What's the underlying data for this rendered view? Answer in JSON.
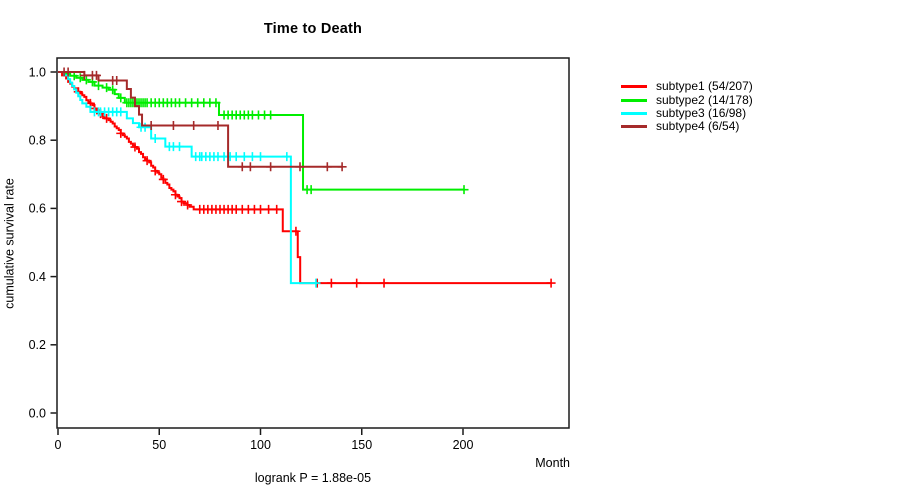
{
  "chart": {
    "title": "Time to Death",
    "ylabel": "cumulative survival rate",
    "xlabel": "Month",
    "footnote": "logrank P = 1.88e-05"
  },
  "chart_data": {
    "type": "line",
    "variant": "kaplan-meier-step",
    "title": "Time to Death",
    "xlabel": "Month",
    "ylabel": "cumulative survival rate",
    "footnote": "logrank P = 1.88e-05",
    "xlim": [
      0,
      252
    ],
    "ylim": [
      0.0,
      1.0
    ],
    "grid": false,
    "legend_position": "right",
    "x_ticks": [
      {
        "label": "0",
        "value": 0
      },
      {
        "label": "50",
        "value": 50
      },
      {
        "label": "100",
        "value": 100
      },
      {
        "label": "150",
        "value": 150
      },
      {
        "label": "200",
        "value": 200
      }
    ],
    "y_ticks": [
      {
        "label": "0.0",
        "value": 0.0
      },
      {
        "label": "0.2",
        "value": 0.2
      },
      {
        "label": "0.4",
        "value": 0.4
      },
      {
        "label": "0.6",
        "value": 0.6
      },
      {
        "label": "0.8",
        "value": 0.8
      },
      {
        "label": "1.0",
        "value": 1.0
      }
    ],
    "series": [
      {
        "name": "subtype1",
        "legend_label": "subtype1 (54/207)",
        "events": 54,
        "n": 207,
        "color": "#ff0000",
        "end_month": 243.5,
        "steps": [
          [
            0,
            1.0
          ],
          [
            2,
            0.99
          ],
          [
            4,
            0.981
          ],
          [
            5,
            0.971
          ],
          [
            6,
            0.966
          ],
          [
            7,
            0.957
          ],
          [
            8,
            0.952
          ],
          [
            10,
            0.942
          ],
          [
            11,
            0.937
          ],
          [
            12,
            0.932
          ],
          [
            13,
            0.927
          ],
          [
            14,
            0.917
          ],
          [
            15,
            0.912
          ],
          [
            16,
            0.908
          ],
          [
            17,
            0.903
          ],
          [
            18,
            0.893
          ],
          [
            19,
            0.888
          ],
          [
            20,
            0.883
          ],
          [
            21,
            0.878
          ],
          [
            22,
            0.869
          ],
          [
            23,
            0.864
          ],
          [
            25,
            0.859
          ],
          [
            26,
            0.854
          ],
          [
            27,
            0.849
          ],
          [
            28,
            0.84
          ],
          [
            29,
            0.835
          ],
          [
            30,
            0.83
          ],
          [
            31,
            0.82
          ],
          [
            32,
            0.815
          ],
          [
            33,
            0.81
          ],
          [
            34,
            0.805
          ],
          [
            35,
            0.795
          ],
          [
            36,
            0.79
          ],
          [
            37,
            0.785
          ],
          [
            38,
            0.78
          ],
          [
            39,
            0.775
          ],
          [
            40,
            0.765
          ],
          [
            41,
            0.76
          ],
          [
            42,
            0.75
          ],
          [
            43,
            0.745
          ],
          [
            44,
            0.74
          ],
          [
            45,
            0.735
          ],
          [
            46,
            0.725
          ],
          [
            47,
            0.72
          ],
          [
            48,
            0.71
          ],
          [
            49,
            0.705
          ],
          [
            50,
            0.7
          ],
          [
            51,
            0.69
          ],
          [
            52,
            0.685
          ],
          [
            53,
            0.675
          ],
          [
            54,
            0.67
          ],
          [
            55,
            0.66
          ],
          [
            56,
            0.655
          ],
          [
            57,
            0.65
          ],
          [
            58,
            0.64
          ],
          [
            59,
            0.635
          ],
          [
            60,
            0.63
          ],
          [
            61,
            0.62
          ],
          [
            62,
            0.615
          ],
          [
            64,
            0.61
          ],
          [
            65,
            0.605
          ],
          [
            67,
            0.597
          ],
          [
            111,
            0.533
          ],
          [
            118.4,
            0.457
          ],
          [
            119.6,
            0.381
          ]
        ],
        "censor_months": [
          10,
          16,
          18,
          21,
          24,
          31,
          38,
          44,
          48,
          52,
          58,
          61,
          64,
          70,
          72,
          74,
          76,
          78,
          80,
          82,
          84,
          86,
          88,
          91,
          94,
          97,
          100,
          104,
          108,
          117.5,
          128,
          135,
          147.5,
          161,
          243.5
        ]
      },
      {
        "name": "subtype2",
        "legend_label": "subtype2 (14/178)",
        "events": 14,
        "n": 178,
        "color": "#00ee00",
        "end_month": 200.5,
        "steps": [
          [
            0,
            1.0
          ],
          [
            4,
            0.994
          ],
          [
            6,
            0.989
          ],
          [
            9,
            0.983
          ],
          [
            12,
            0.977
          ],
          [
            15,
            0.971
          ],
          [
            18,
            0.96
          ],
          [
            22,
            0.954
          ],
          [
            25,
            0.948
          ],
          [
            28,
            0.935
          ],
          [
            30,
            0.924
          ],
          [
            33,
            0.91
          ],
          [
            79.5,
            0.874
          ],
          [
            121,
            0.655
          ]
        ],
        "censor_months": [
          8,
          11,
          14,
          17,
          20,
          24,
          27,
          31,
          34,
          35,
          36,
          37,
          38,
          39,
          40,
          41,
          42,
          43,
          44,
          46,
          48,
          50,
          52,
          54,
          56,
          58,
          60,
          63,
          66,
          69,
          72,
          75,
          78,
          82,
          84,
          86,
          88,
          90,
          92,
          94,
          96,
          99,
          102,
          105,
          123,
          125,
          200.5
        ]
      },
      {
        "name": "subtype3",
        "legend_label": "subtype3 (16/98)",
        "events": 16,
        "n": 98,
        "color": "#00ffff",
        "end_month": 127.5,
        "steps": [
          [
            0,
            1.0
          ],
          [
            3,
            0.99
          ],
          [
            5,
            0.979
          ],
          [
            6,
            0.969
          ],
          [
            7,
            0.959
          ],
          [
            8,
            0.949
          ],
          [
            9,
            0.939
          ],
          [
            10,
            0.929
          ],
          [
            11,
            0.918
          ],
          [
            12,
            0.908
          ],
          [
            14,
            0.898
          ],
          [
            16,
            0.883
          ],
          [
            34,
            0.864
          ],
          [
            37,
            0.85
          ],
          [
            40,
            0.838
          ],
          [
            46,
            0.805
          ],
          [
            53,
            0.781
          ],
          [
            66,
            0.752
          ],
          [
            115,
            0.381
          ]
        ],
        "censor_months": [
          18,
          20,
          21,
          23,
          25,
          27,
          29,
          31,
          41,
          43,
          48,
          55,
          57,
          60,
          68,
          70,
          71,
          73,
          75,
          77,
          79,
          82,
          85,
          88,
          92,
          96,
          100,
          113,
          127.4
        ]
      },
      {
        "name": "subtype4",
        "legend_label": "subtype4 (6/54)",
        "events": 6,
        "n": 54,
        "color": "#a52a2a",
        "end_month": 140.3,
        "steps": [
          [
            0,
            1.0
          ],
          [
            13,
            0.99
          ],
          [
            20,
            0.975
          ],
          [
            34,
            0.95
          ],
          [
            36,
            0.925
          ],
          [
            38,
            0.9
          ],
          [
            40,
            0.875
          ],
          [
            41.5,
            0.843
          ],
          [
            84,
            0.722
          ]
        ],
        "censor_months": [
          3,
          5,
          13,
          17,
          19,
          27,
          29,
          46,
          57,
          67,
          79,
          91,
          95,
          105,
          119.5,
          133,
          140.3
        ]
      }
    ]
  }
}
